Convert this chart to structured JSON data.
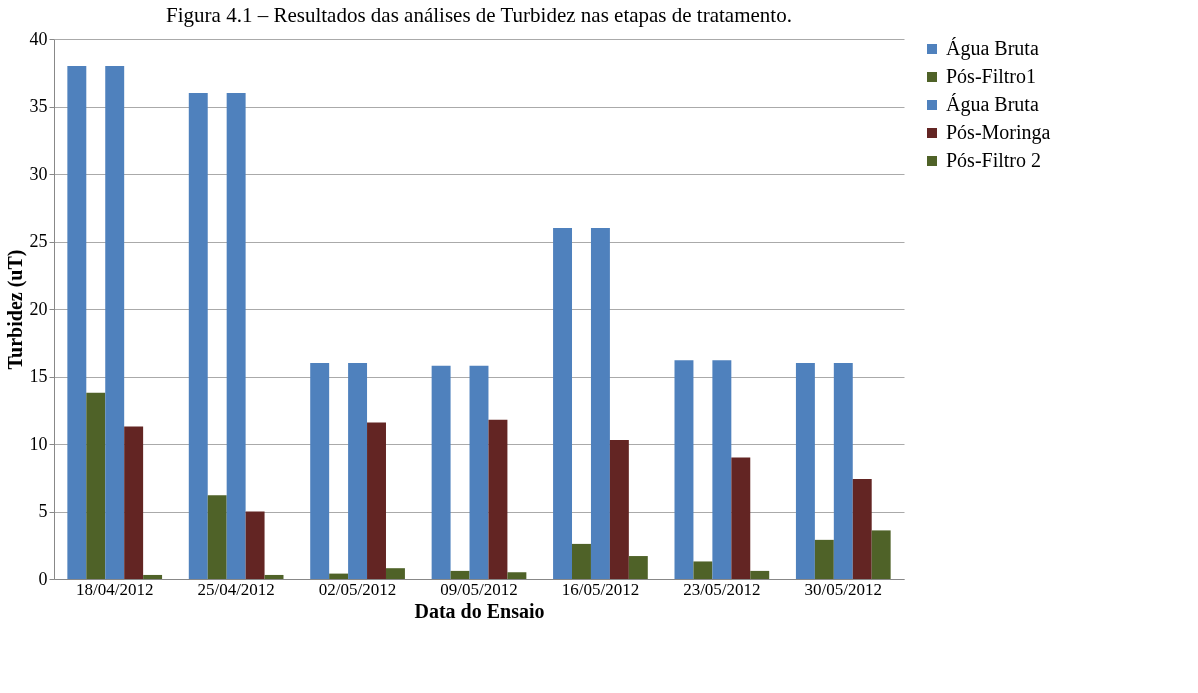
{
  "chart_data": {
    "type": "bar",
    "title": "Figura 4.1 – Resultados das análises de Turbidez nas etapas de tratamento.",
    "xlabel": "Data do Ensaio",
    "ylabel": "Turbidez (uT)",
    "categories": [
      "18/04/2012",
      "25/04/2012",
      "02/05/2012",
      "09/05/2012",
      "16/05/2012",
      "23/05/2012",
      "30/05/2012"
    ],
    "series": [
      {
        "name": "Água Bruta",
        "color": "#4f81bd",
        "values": [
          38,
          36,
          16,
          15.8,
          26,
          16.2,
          16
        ]
      },
      {
        "name": "Pós-Filtro1",
        "color": "#4f6228",
        "values": [
          13.8,
          6.2,
          0.4,
          0.6,
          2.6,
          1.3,
          2.9
        ]
      },
      {
        "name": "Água Bruta",
        "color": "#4f81bd",
        "values": [
          38,
          36,
          16,
          15.8,
          26,
          16.2,
          16
        ]
      },
      {
        "name": "Pós-Moringa",
        "color": "#632523",
        "values": [
          11.3,
          5.0,
          11.6,
          11.8,
          10.3,
          9.0,
          7.4
        ]
      },
      {
        "name": "Pós-Filtro 2",
        "color": "#4f6228",
        "values": [
          0.3,
          0.3,
          0.8,
          0.5,
          1.7,
          0.6,
          3.6
        ]
      }
    ],
    "ylim": [
      0,
      40
    ],
    "yticks": [
      0,
      5,
      10,
      15,
      20,
      25,
      30,
      35,
      40
    ],
    "grid": "y",
    "legend": "right"
  }
}
